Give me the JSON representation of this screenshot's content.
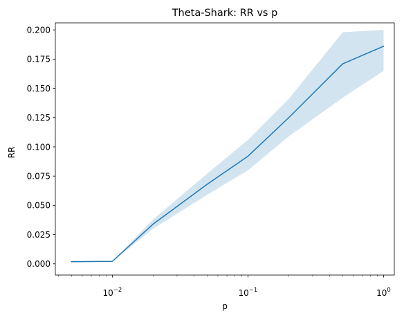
{
  "chart_data": {
    "type": "line",
    "title": "Theta-Shark: RR vs p",
    "xlabel": "p",
    "ylabel": "RR",
    "x_scale": "log",
    "xlim": [
      0.0038,
      1.2
    ],
    "ylim": [
      -0.0096,
      0.206
    ],
    "x_ticks": [
      {
        "value": 0.01,
        "base": "10",
        "exp": "−2"
      },
      {
        "value": 0.1,
        "base": "10",
        "exp": "−1"
      },
      {
        "value": 1,
        "base": "10",
        "exp": "0"
      }
    ],
    "x_minor_ticks": [
      0.004,
      0.005,
      0.006,
      0.007,
      0.008,
      0.009,
      0.02,
      0.03,
      0.04,
      0.05,
      0.06,
      0.07,
      0.08,
      0.09,
      0.2,
      0.3,
      0.4,
      0.5,
      0.6,
      0.7,
      0.8,
      0.9
    ],
    "y_ticks": [
      "0.000",
      "0.025",
      "0.050",
      "0.075",
      "0.100",
      "0.125",
      "0.150",
      "0.175",
      "0.200"
    ],
    "grid": false,
    "series": [
      {
        "color": "#1f77b4",
        "band_color": "#1f77b4",
        "x": [
          0.005,
          0.01,
          0.02,
          0.05,
          0.1,
          0.2,
          0.5,
          1.0
        ],
        "y": [
          0.0018,
          0.0021,
          0.034,
          0.068,
          0.092,
          0.125,
          0.171,
          0.186
        ],
        "lower": [
          0.0016,
          0.0019,
          0.03,
          0.059,
          0.08,
          0.109,
          0.142,
          0.165
        ],
        "upper": [
          0.002,
          0.0023,
          0.038,
          0.077,
          0.106,
          0.141,
          0.198,
          0.2
        ]
      }
    ]
  }
}
